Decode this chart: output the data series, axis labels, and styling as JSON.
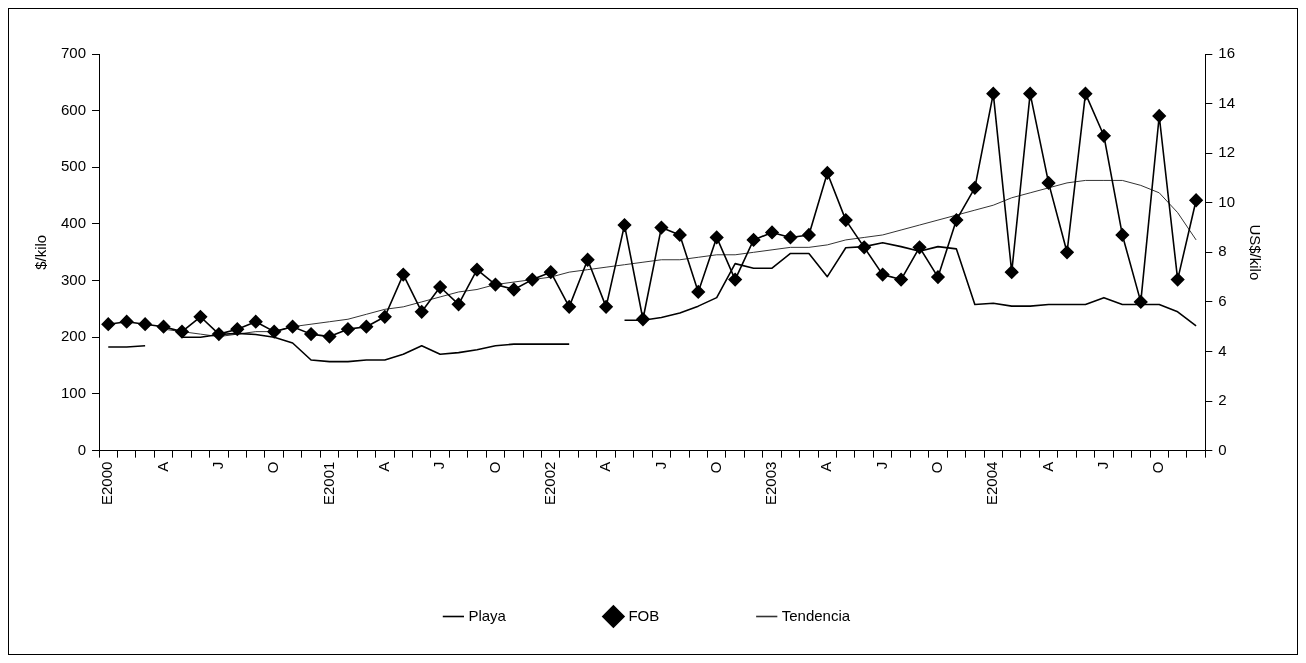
{
  "chart_data": {
    "type": "line",
    "xlabel": null,
    "ylabel": "$/kilo",
    "y2label": "US$/kilo",
    "categories": [
      "E2000",
      null,
      null,
      "A",
      null,
      null,
      "J",
      null,
      null,
      "O",
      null,
      null,
      "E2001",
      null,
      null,
      "A",
      null,
      null,
      "J",
      null,
      null,
      "O",
      null,
      null,
      "E2002",
      null,
      null,
      "A",
      null,
      null,
      "J",
      null,
      null,
      "O",
      null,
      null,
      "E2003",
      null,
      null,
      "A",
      null,
      null,
      "J",
      null,
      null,
      "O",
      null,
      null,
      "E2004",
      null,
      null,
      "A",
      null,
      null,
      "J",
      null,
      null,
      "O",
      null,
      null
    ],
    "ylim": [
      0,
      700
    ],
    "yticks": [
      0,
      100,
      200,
      300,
      400,
      500,
      600,
      700
    ],
    "y2lim": [
      0,
      16
    ],
    "y2ticks": [
      0,
      2,
      4,
      6,
      8,
      10,
      12,
      14,
      16
    ],
    "grid": false,
    "legend": "bottom",
    "series": [
      {
        "name": "Playa",
        "color": "#000000",
        "marker": "none",
        "values": [
          183,
          183,
          185,
          null,
          200,
          200,
          205,
          207,
          205,
          200,
          190,
          160,
          157,
          157,
          160,
          160,
          170,
          185,
          170,
          173,
          178,
          185,
          188,
          188,
          188,
          188,
          null,
          null,
          230,
          230,
          235,
          243,
          255,
          270,
          330,
          322,
          322,
          348,
          348,
          307,
          358,
          360,
          367,
          360,
          352,
          360,
          356,
          258,
          260,
          255,
          255,
          258,
          258,
          258,
          270,
          258,
          258,
          258,
          245,
          220
        ]
      },
      {
        "name": "FOB",
        "color": "#000000",
        "marker": "diamond",
        "axis": "y2",
        "values": [
          5.1,
          5.2,
          5.1,
          5.0,
          4.8,
          5.4,
          4.7,
          4.9,
          5.2,
          4.8,
          5.0,
          4.7,
          4.6,
          4.9,
          5.0,
          5.4,
          7.1,
          5.6,
          6.6,
          5.9,
          7.3,
          6.7,
          6.5,
          6.9,
          7.2,
          5.8,
          7.7,
          5.8,
          9.1,
          5.3,
          9.0,
          8.7,
          6.4,
          8.6,
          6.9,
          8.5,
          8.8,
          8.6,
          8.7,
          11.2,
          9.3,
          8.2,
          7.1,
          6.9,
          8.2,
          7.0,
          9.3,
          10.6,
          14.4,
          7.2,
          14.4,
          10.8,
          8.0,
          14.4,
          12.7,
          8.7,
          6.0,
          13.5,
          6.9,
          10.1
        ]
      },
      {
        "name": "Tendencia",
        "color": "#333333",
        "marker": "none",
        "axis": "y2",
        "values": [
          null,
          null,
          null,
          4.9,
          4.8,
          4.7,
          4.6,
          4.7,
          4.8,
          4.8,
          5.0,
          5.1,
          5.2,
          5.3,
          5.5,
          5.7,
          5.8,
          6.0,
          6.2,
          6.4,
          6.5,
          6.7,
          6.8,
          6.9,
          7.0,
          7.2,
          7.3,
          7.4,
          7.5,
          7.6,
          7.7,
          7.7,
          7.8,
          7.9,
          7.9,
          8.0,
          8.1,
          8.2,
          8.2,
          8.3,
          8.5,
          8.6,
          8.7,
          8.9,
          9.1,
          9.3,
          9.5,
          9.7,
          9.9,
          10.2,
          10.4,
          10.6,
          10.8,
          10.9,
          10.9,
          10.9,
          10.7,
          10.4,
          9.6,
          8.5
        ]
      }
    ]
  }
}
